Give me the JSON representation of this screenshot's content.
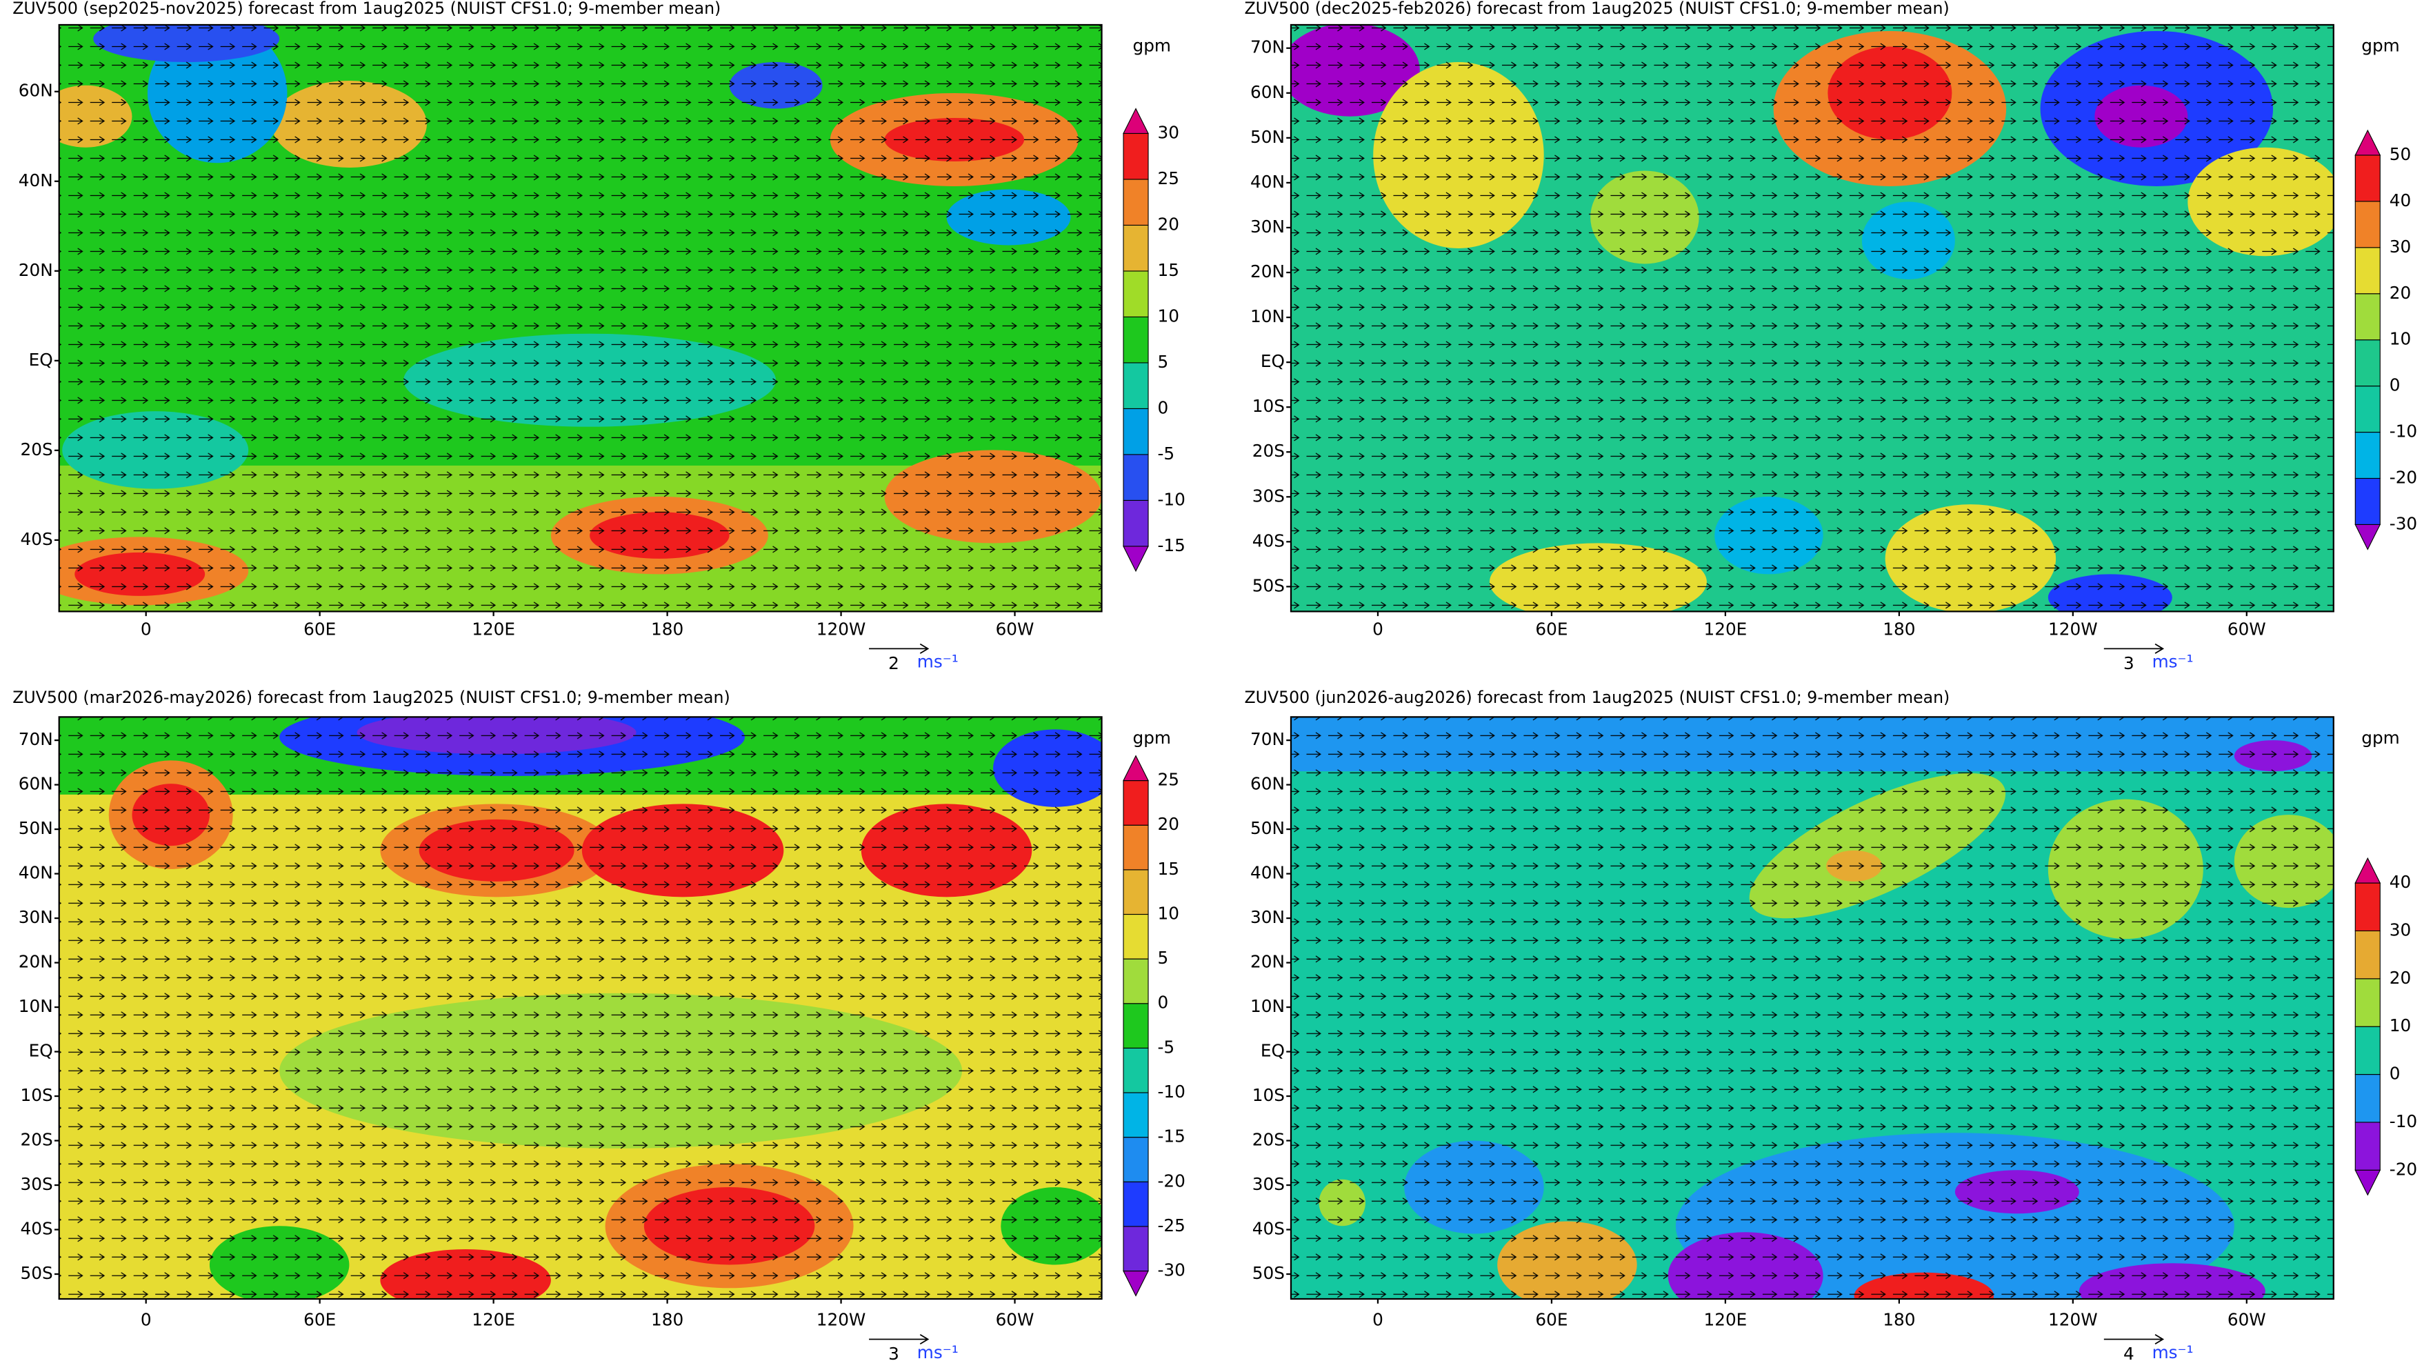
{
  "panels": [
    {
      "title": "ZUV500 (sep2025-nov2025) forecast from 1aug2025 (NUIST CFS1.0; 9-member mean)",
      "units": "gpm",
      "lat_ticks": [
        "60N",
        "40N",
        "20N",
        "EQ",
        "20S",
        "40S"
      ],
      "lon_ticks": [
        "0",
        "60E",
        "120E",
        "180",
        "120W",
        "60W"
      ],
      "colorbar": {
        "levels": [
          -15,
          -10,
          -5,
          0,
          5,
          10,
          15,
          20,
          25,
          30
        ],
        "colors": [
          "#a000c8",
          "#6e28dc",
          "#2850f0",
          "#00a0e6",
          "#14c8a0",
          "#1ec81e",
          "#a0dc28",
          "#e6b432",
          "#f08228",
          "#f01e1e",
          "#dc0078"
        ]
      },
      "vector_ref": {
        "value": 2,
        "unit": "ms⁻¹"
      }
    },
    {
      "title": "ZUV500 (dec2025-feb2026) forecast from 1aug2025 (NUIST CFS1.0; 9-member mean)",
      "units": "gpm",
      "lat_ticks": [
        "70N",
        "60N",
        "50N",
        "40N",
        "30N",
        "20N",
        "10N",
        "EQ",
        "10S",
        "20S",
        "30S",
        "40S",
        "50S"
      ],
      "lon_ticks": [
        "0",
        "60E",
        "120E",
        "180",
        "120W",
        "60W"
      ],
      "colorbar": {
        "levels": [
          -30,
          -20,
          -10,
          0,
          10,
          20,
          30,
          40,
          50
        ],
        "colors": [
          "#a000c8",
          "#1e3cff",
          "#00b4e6",
          "#14c8a0",
          "#1ec88c",
          "#a0dc3c",
          "#e6dc32",
          "#f08228",
          "#f01e1e",
          "#dc0078"
        ]
      },
      "vector_ref": {
        "value": 3,
        "unit": "ms⁻¹"
      }
    },
    {
      "title": "ZUV500 (mar2026-may2026) forecast from 1aug2025 (NUIST CFS1.0; 9-member mean)",
      "units": "gpm",
      "lat_ticks": [
        "70N",
        "60N",
        "50N",
        "40N",
        "30N",
        "20N",
        "10N",
        "EQ",
        "10S",
        "20S",
        "30S",
        "40S",
        "50S"
      ],
      "lon_ticks": [
        "0",
        "60E",
        "120E",
        "180",
        "120W",
        "60W"
      ],
      "colorbar": {
        "levels": [
          -30,
          -25,
          -20,
          -15,
          -10,
          -5,
          0,
          5,
          10,
          15,
          20,
          25
        ],
        "colors": [
          "#a000c8",
          "#6e28dc",
          "#1e3cff",
          "#1e8cf0",
          "#00b4e6",
          "#14c8a0",
          "#1ec81e",
          "#a0dc3c",
          "#e6dc32",
          "#e6b432",
          "#f08228",
          "#f01e1e",
          "#dc0078"
        ]
      },
      "vector_ref": {
        "value": 3,
        "unit": "ms⁻¹"
      }
    },
    {
      "title": "ZUV500 (jun2026-aug2026) forecast from 1aug2025 (NUIST CFS1.0; 9-member mean)",
      "units": "gpm",
      "lat_ticks": [
        "70N",
        "60N",
        "50N",
        "40N",
        "30N",
        "20N",
        "10N",
        "EQ",
        "10S",
        "20S",
        "30S",
        "40S",
        "50S"
      ],
      "lon_ticks": [
        "0",
        "60E",
        "120E",
        "180",
        "120W",
        "60W"
      ],
      "colorbar": {
        "levels": [
          -20,
          -10,
          0,
          10,
          20,
          30,
          40
        ],
        "colors": [
          "#9600d2",
          "#8c14dc",
          "#1e96f0",
          "#14c8a0",
          "#a0dc3c",
          "#e6aa32",
          "#f01e1e",
          "#dc0078"
        ]
      },
      "vector_ref": {
        "value": 4,
        "unit": "ms⁻¹"
      }
    }
  ]
}
